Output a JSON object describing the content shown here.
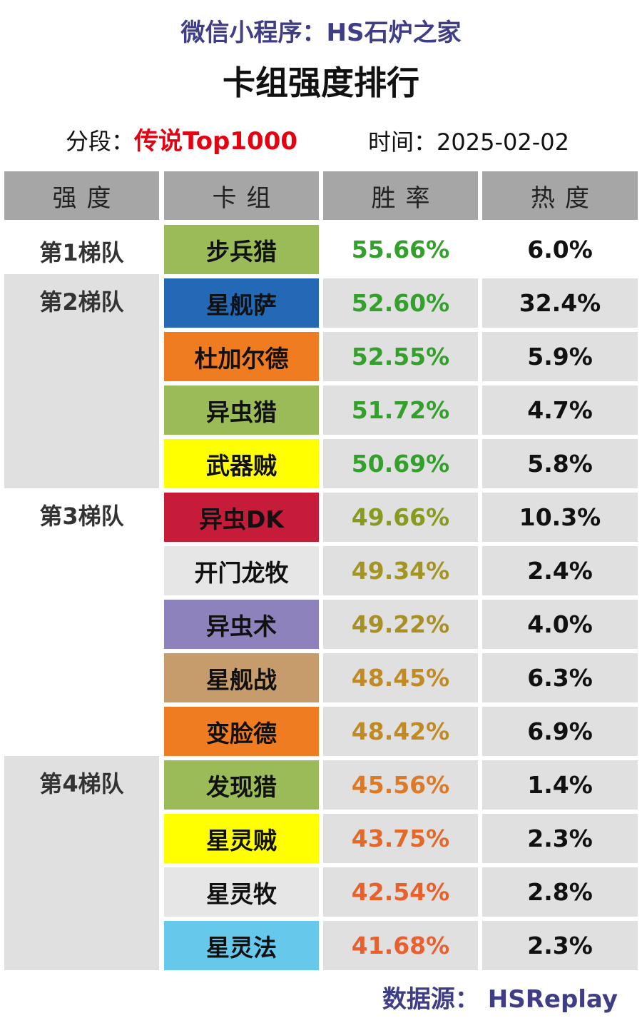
{
  "header": {
    "subtitle": "微信小程序：HS石炉之家",
    "title": "卡组强度排行",
    "rank_label": "分段：",
    "rank_value": "传说Top1000",
    "date_label": "时间：",
    "date_value": "2025-02-02"
  },
  "table": {
    "columns": [
      "强度",
      "卡组",
      "胜率",
      "热度"
    ],
    "tiers": [
      {
        "label": "第1梯队",
        "shaded": false,
        "rows": 1
      },
      {
        "label": "第2梯队",
        "shaded": true,
        "rows": 4
      },
      {
        "label": "第3梯队",
        "shaded": false,
        "rows": 5
      },
      {
        "label": "第4梯队",
        "shaded": true,
        "rows": 4
      }
    ],
    "rows": [
      {
        "deck": "步兵猎",
        "winrate": "55.66%",
        "popularity": "6.0%",
        "deck_color": "#9bbb59",
        "winrate_color": "#33a02c"
      },
      {
        "deck": "星舰萨",
        "winrate": "52.60%",
        "popularity": "32.4%",
        "deck_color": "#2369b5",
        "winrate_color": "#33a02c"
      },
      {
        "deck": "杜加尔德",
        "winrate": "52.55%",
        "popularity": "5.9%",
        "deck_color": "#f07c22",
        "winrate_color": "#33a02c"
      },
      {
        "deck": "异虫猎",
        "winrate": "51.72%",
        "popularity": "4.7%",
        "deck_color": "#9bbb59",
        "winrate_color": "#33a02c"
      },
      {
        "deck": "武器贼",
        "winrate": "50.69%",
        "popularity": "5.8%",
        "deck_color": "#ffff00",
        "winrate_color": "#33a02c"
      },
      {
        "deck": "异虫DK",
        "winrate": "49.66%",
        "popularity": "10.3%",
        "deck_color": "#c61c3a",
        "winrate_color": "#8a9a1e"
      },
      {
        "deck": "开门龙牧",
        "winrate": "49.34%",
        "popularity": "2.4%",
        "deck_color": "#e6e6e6",
        "winrate_color": "#a39523"
      },
      {
        "deck": "异虫术",
        "winrate": "49.22%",
        "popularity": "4.0%",
        "deck_color": "#8e82bd",
        "winrate_color": "#a89024"
      },
      {
        "deck": "星舰战",
        "winrate": "48.45%",
        "popularity": "6.3%",
        "deck_color": "#c69c6d",
        "winrate_color": "#c08a24"
      },
      {
        "deck": "变脸德",
        "winrate": "48.42%",
        "popularity": "6.9%",
        "deck_color": "#f07c22",
        "winrate_color": "#c08a24"
      },
      {
        "deck": "发现猎",
        "winrate": "45.56%",
        "popularity": "1.4%",
        "deck_color": "#9bbb59",
        "winrate_color": "#de7a26"
      },
      {
        "deck": "星灵贼",
        "winrate": "43.75%",
        "popularity": "2.3%",
        "deck_color": "#ffff00",
        "winrate_color": "#e2692a"
      },
      {
        "deck": "星灵牧",
        "winrate": "42.54%",
        "popularity": "2.8%",
        "deck_color": "#e6e6e6",
        "winrate_color": "#e8612b"
      },
      {
        "deck": "星灵法",
        "winrate": "41.68%",
        "popularity": "2.3%",
        "deck_color": "#66c8ea",
        "winrate_color": "#ea5f2e"
      }
    ]
  },
  "footer": {
    "source": "数据源：  HSReplay"
  },
  "colors": {
    "accent": "#3f3d86",
    "rank_highlight": "#e60012",
    "header_bg": "#a6a6a6",
    "row_shade": "#e0e0e0"
  }
}
